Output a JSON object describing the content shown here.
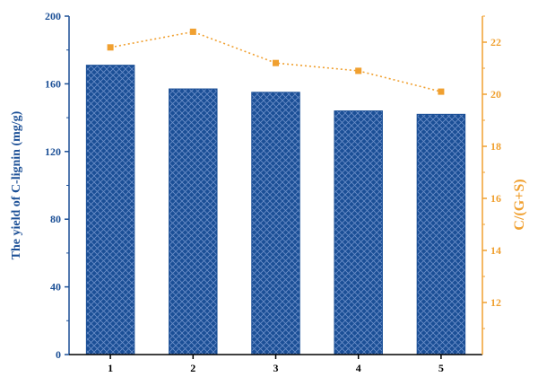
{
  "chart_data": {
    "type": "bar",
    "categories": [
      "1",
      "2",
      "3",
      "4",
      "5"
    ],
    "series": [
      {
        "name": "The yield of C-lignin (mg/g)",
        "type": "bar",
        "axis": "left",
        "values": [
          171,
          157,
          155,
          144,
          142
        ]
      },
      {
        "name": "C/(G+S)",
        "type": "line",
        "axis": "right",
        "values": [
          21.8,
          22.4,
          21.2,
          20.9,
          20.1
        ]
      }
    ],
    "ylabel_left": "The yield of C-lignin (mg/g)",
    "ylabel_right": "C/(G+S)",
    "ylim_left": [
      0,
      200
    ],
    "yticks_left": [
      0,
      40,
      80,
      120,
      160,
      200
    ],
    "ylim_right": [
      10,
      23
    ],
    "yticks_right": [
      12,
      14,
      16,
      18,
      20,
      22
    ],
    "grid": false,
    "colors": {
      "bar": "#1b4f96",
      "bar_pattern": "#6b8fc9",
      "line": "#f0a030",
      "left_axis": "#1b4f96",
      "right_axis": "#f0a030"
    }
  }
}
